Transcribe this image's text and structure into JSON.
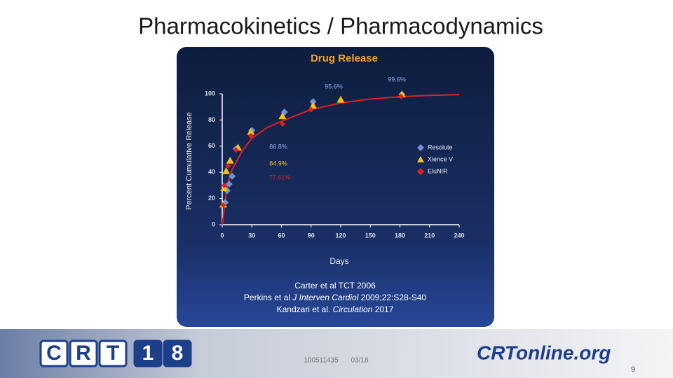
{
  "slide_title": "Pharmacokinetics / Pharmacodynamics",
  "chart_data": {
    "type": "scatter",
    "title": "Drug Release",
    "xlabel": "Days",
    "ylabel": "Percent Cumulative Release",
    "xlim": [
      0,
      240
    ],
    "xticks": [
      0,
      30,
      60,
      90,
      120,
      150,
      180,
      210,
      240
    ],
    "ylim": [
      0,
      100
    ],
    "yticks": [
      0,
      20,
      40,
      60,
      80,
      100
    ],
    "series": [
      {
        "name": "Resolute",
        "color": "#7090d8",
        "marker": "diamond",
        "x": [
          3,
          5,
          7,
          10,
          14,
          30,
          63,
          92,
          182
        ],
        "values": [
          17,
          26,
          31,
          37,
          58,
          72,
          86,
          94,
          99.6
        ]
      },
      {
        "name": "Xience V",
        "color": "#f2c21b",
        "marker": "triangle",
        "x": [
          1,
          2,
          4,
          8,
          16,
          29,
          61,
          92,
          120,
          182
        ],
        "values": [
          15.5,
          28,
          41,
          49,
          59,
          71,
          83,
          91,
          95.6,
          99.6
        ]
      },
      {
        "name": "EluNIR",
        "color": "#e0201f",
        "marker": "diamond",
        "x": [
          1,
          2,
          6,
          14,
          29,
          61,
          90,
          181
        ],
        "values": [
          15,
          30,
          45,
          57,
          68,
          77,
          88,
          98
        ]
      }
    ],
    "fit_curve": {
      "color": "#e0201f",
      "x": [
        0,
        5,
        10,
        20,
        30,
        45,
        60,
        90,
        120,
        150,
        180,
        210,
        240
      ],
      "values": [
        0,
        30,
        42,
        56,
        66,
        74,
        79,
        88,
        93,
        96,
        97.8,
        98.8,
        99.3
      ]
    },
    "annotations": [
      {
        "text": "95.6%",
        "color": "#8fa8e8"
      },
      {
        "text": "99.6%",
        "color": "#8fa8e8"
      },
      {
        "text": "86.8%",
        "color": "#8fa8e8"
      },
      {
        "text": "84.9%",
        "color": "#f2c21b"
      },
      {
        "text": "77.61%",
        "color": "#e0201f"
      }
    ]
  },
  "references": [
    [
      "Carter et al TCT 2006"
    ],
    [
      "Perkins et al ",
      "J Interven Cardiol",
      " 2009;22:S28-S40"
    ],
    [
      "Kandzari et al. ",
      "Circulation",
      " 2017"
    ]
  ],
  "footer": {
    "code": "100511435",
    "date": "03/18",
    "page": "9",
    "logo_left": [
      "C",
      "R",
      "T",
      "1",
      "8"
    ],
    "logo_right": "CRTonline.org"
  }
}
